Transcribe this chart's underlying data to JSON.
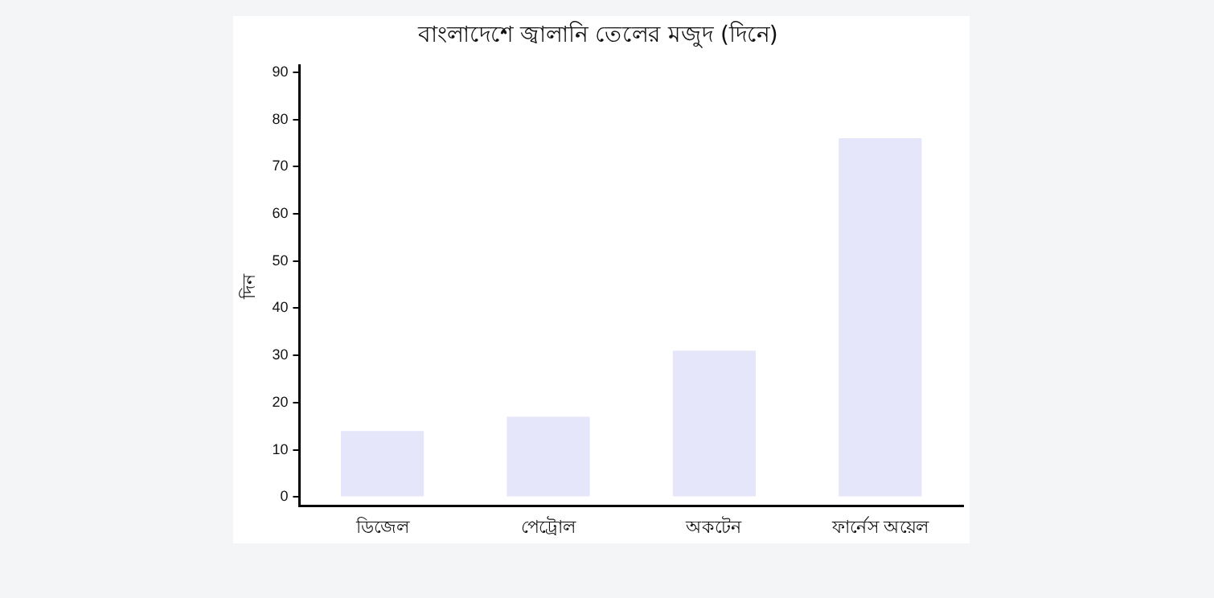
{
  "chart_data": {
    "type": "bar",
    "title": "বাংলাদেশে জ্বালানি তেলের মজুদ (দিনে)",
    "ylabel": "দিন",
    "categories": [
      "ডিজেল",
      "পেট্রোল",
      "অকটেন",
      "ফার্নেস অয়েল"
    ],
    "values": [
      14,
      17,
      31,
      76
    ],
    "color": "#e6e6fa",
    "ylim": [
      -1.9,
      91.4
    ],
    "yticks": [
      0,
      10,
      20,
      30,
      40,
      50,
      60,
      70,
      80,
      90
    ],
    "grid": false,
    "legend": false
  }
}
